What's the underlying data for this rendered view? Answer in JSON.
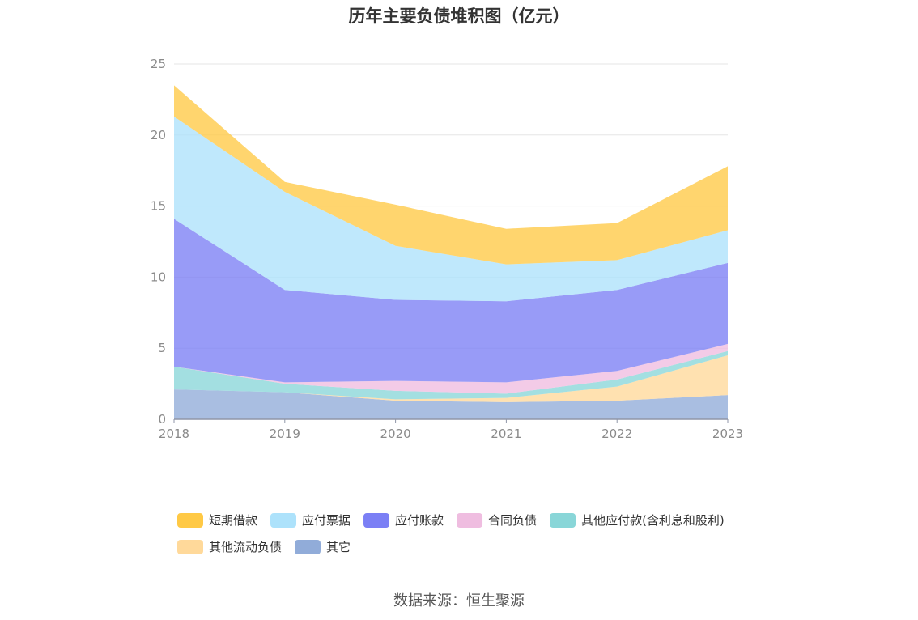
{
  "chart_data": {
    "type": "area",
    "stacked": true,
    "title": "历年主要负债堆积图（亿元）",
    "xlabel": "",
    "ylabel": "",
    "categories": [
      "2018",
      "2019",
      "2020",
      "2021",
      "2022",
      "2023"
    ],
    "ylim": [
      0,
      25
    ],
    "yticks": [
      0,
      5,
      10,
      15,
      20,
      25
    ],
    "grid": true,
    "legend_position": "bottom",
    "series": [
      {
        "name": "其它",
        "color": "#91acd9",
        "values": [
          2.1,
          1.9,
          1.3,
          1.2,
          1.3,
          1.7
        ]
      },
      {
        "name": "其他流动负债",
        "color": "#ffd99a",
        "values": [
          0.0,
          0.0,
          0.1,
          0.3,
          1.0,
          2.8
        ]
      },
      {
        "name": "其他应付款(含利息和股利)",
        "color": "#89d6d8",
        "values": [
          1.6,
          0.6,
          0.6,
          0.3,
          0.5,
          0.3
        ]
      },
      {
        "name": "合同负债",
        "color": "#efbde0",
        "values": [
          0.0,
          0.1,
          0.7,
          0.8,
          0.6,
          0.5
        ]
      },
      {
        "name": "应付账款",
        "color": "#7b7ff5",
        "values": [
          10.4,
          6.5,
          5.7,
          5.7,
          5.7,
          5.7
        ]
      },
      {
        "name": "应付票据",
        "color": "#ade2fb",
        "values": [
          7.2,
          6.9,
          3.8,
          2.6,
          2.1,
          2.3
        ]
      },
      {
        "name": "短期借款",
        "color": "#ffc945",
        "values": [
          2.2,
          0.7,
          2.9,
          2.5,
          2.6,
          4.5
        ]
      }
    ],
    "legend_order": [
      "短期借款",
      "应付票据",
      "应付账款",
      "合同负债",
      "其他应付款(含利息和股利)",
      "其他流动负债",
      "其它"
    ]
  },
  "source_text": "数据来源：恒生聚源"
}
